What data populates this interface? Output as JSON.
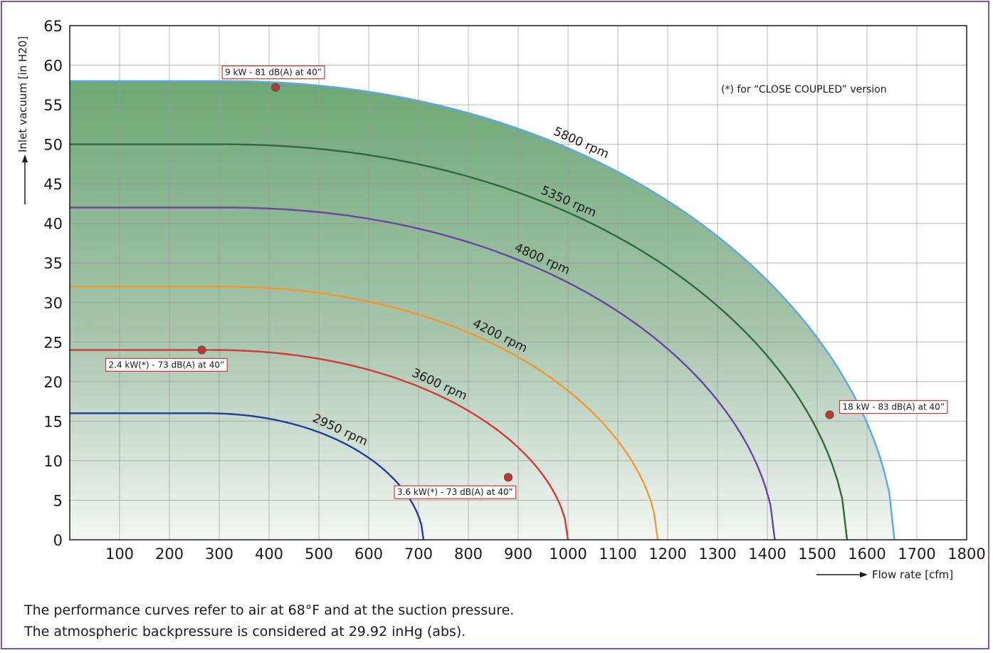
{
  "chart_data": {
    "type": "line",
    "xlabel": "Flow rate [cfm]",
    "ylabel": "Inlet vacuum [in H20]",
    "xlim": [
      0,
      1800
    ],
    "ylim": [
      0,
      65
    ],
    "xticks": [
      100,
      200,
      300,
      400,
      500,
      600,
      700,
      800,
      900,
      1000,
      1100,
      1200,
      1300,
      1400,
      1500,
      1600,
      1700,
      1800
    ],
    "yticks": [
      0,
      5,
      10,
      15,
      20,
      25,
      30,
      35,
      40,
      45,
      50,
      55,
      60,
      65
    ],
    "grid": true,
    "series": [
      {
        "name": "2950 rpm",
        "color": "#1f3f99",
        "flat_value": 16,
        "flat_until": 270,
        "max_flow": 710
      },
      {
        "name": "3600 rpm",
        "color": "#d23a33",
        "flat_value": 24,
        "flat_until": 280,
        "max_flow": 1000
      },
      {
        "name": "4200 rpm",
        "color": "#f2992e",
        "flat_value": 32,
        "flat_until": 300,
        "max_flow": 1180
      },
      {
        "name": "4800 rpm",
        "color": "#6a45a3",
        "flat_value": 42,
        "flat_until": 310,
        "max_flow": 1415
      },
      {
        "name": "5350 rpm",
        "color": "#2e6b3a",
        "flat_value": 50,
        "flat_until": 300,
        "max_flow": 1560
      },
      {
        "name": "5800 rpm",
        "color": "#5aa9e6",
        "flat_value": 58,
        "flat_until": 300,
        "max_flow": 1655
      }
    ],
    "annotations": [
      {
        "text": "9 kW - 81 dB(A) at 40”",
        "x": 413,
        "y": 57.2
      },
      {
        "text": "2.4 kW(*) - 73 dB(A) at 40”",
        "x": 265,
        "y": 24
      },
      {
        "text": "18 kW - 83 dB(A) at 40”",
        "x": 1525,
        "y": 15.8
      },
      {
        "text": "3.6 kW(*) - 73 dB(A) at 40”",
        "x": 880,
        "y": 7.9
      }
    ],
    "note": "(*) for “CLOSE COUPLED” version"
  },
  "footnotes": [
    "The performance curves refer to air at 68°F and at the suction pressure.",
    "The atmospheric backpressure is considered at 29.92 inHg (abs)."
  ]
}
